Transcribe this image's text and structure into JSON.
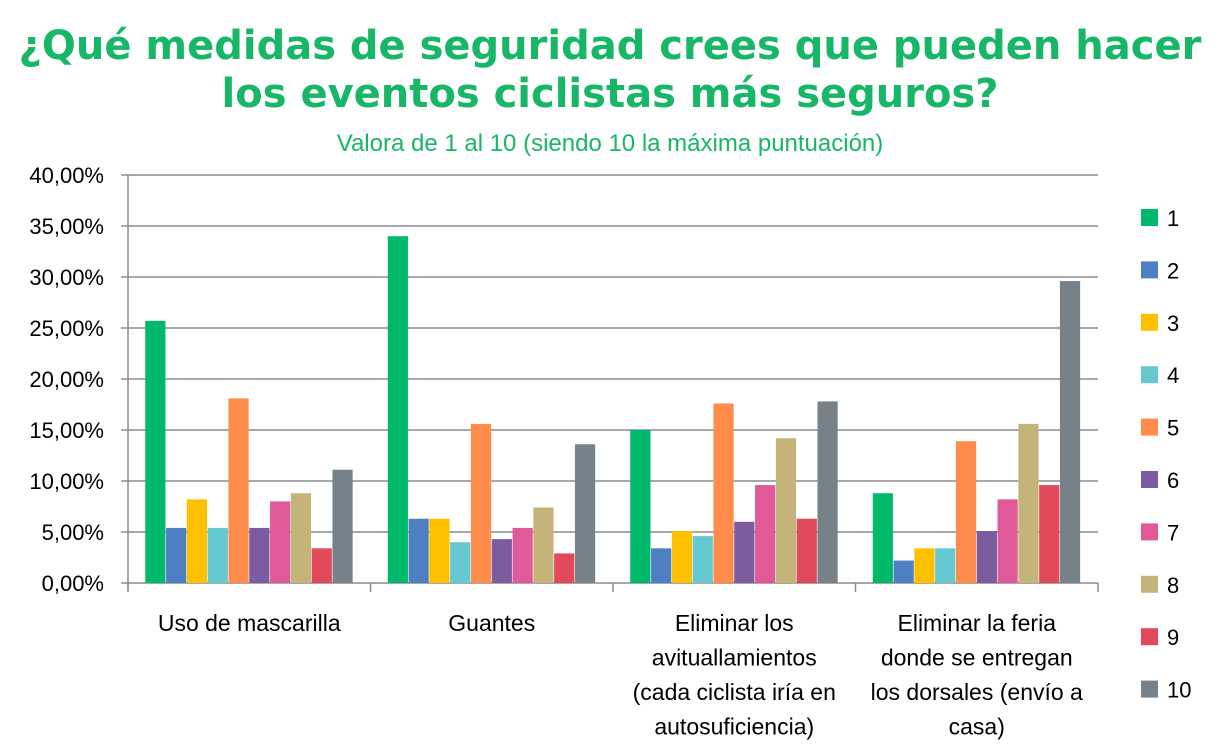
{
  "chart_data": {
    "type": "bar",
    "title": "¿Qué medidas de seguridad crees que pueden hacer los eventos ciclistas más seguros?",
    "subtitle": "Valora  de 1 al 10 (siendo 10 la máxima puntuación)",
    "title_color": "#17b767",
    "xlabel": "",
    "ylabel": "",
    "ylim": [
      0,
      40
    ],
    "y_ticks": [
      "0,00%",
      "5,00%",
      "10,00%",
      "15,00%",
      "20,00%",
      "25,00%",
      "30,00%",
      "35,00%",
      "40,00%"
    ],
    "grid": true,
    "legend_position": "right",
    "categories": [
      [
        "Uso de mascarilla"
      ],
      [
        "Guantes"
      ],
      [
        "Eliminar los",
        "avituallamientos",
        "(cada ciclista iría en",
        "autosuficiencia)"
      ],
      [
        "Eliminar la feria",
        "donde se entregan",
        "los dorsales (envío a",
        "casa)"
      ]
    ],
    "series": [
      {
        "name": "1",
        "color": "#00b96b",
        "values": [
          25.7,
          34.0,
          15.0,
          8.8
        ]
      },
      {
        "name": "2",
        "color": "#4f7fc3",
        "values": [
          5.4,
          6.3,
          3.4,
          2.2
        ]
      },
      {
        "name": "3",
        "color": "#ffc000",
        "values": [
          8.2,
          6.3,
          5.1,
          3.4
        ]
      },
      {
        "name": "4",
        "color": "#66c8d0",
        "values": [
          5.4,
          4.0,
          4.6,
          3.4
        ]
      },
      {
        "name": "5",
        "color": "#ff8c4a",
        "values": [
          18.1,
          15.6,
          17.6,
          13.9
        ]
      },
      {
        "name": "6",
        "color": "#7b5c9e",
        "values": [
          5.4,
          4.3,
          6.0,
          5.1
        ]
      },
      {
        "name": "7",
        "color": "#e05a9a",
        "values": [
          8.0,
          5.4,
          9.6,
          8.2
        ]
      },
      {
        "name": "8",
        "color": "#c4b47a",
        "values": [
          8.8,
          7.4,
          14.2,
          15.6
        ]
      },
      {
        "name": "9",
        "color": "#e04a5a",
        "values": [
          3.4,
          2.9,
          6.3,
          9.6
        ]
      },
      {
        "name": "10",
        "color": "#76818a",
        "values": [
          11.1,
          13.6,
          17.8,
          29.6
        ]
      }
    ]
  }
}
